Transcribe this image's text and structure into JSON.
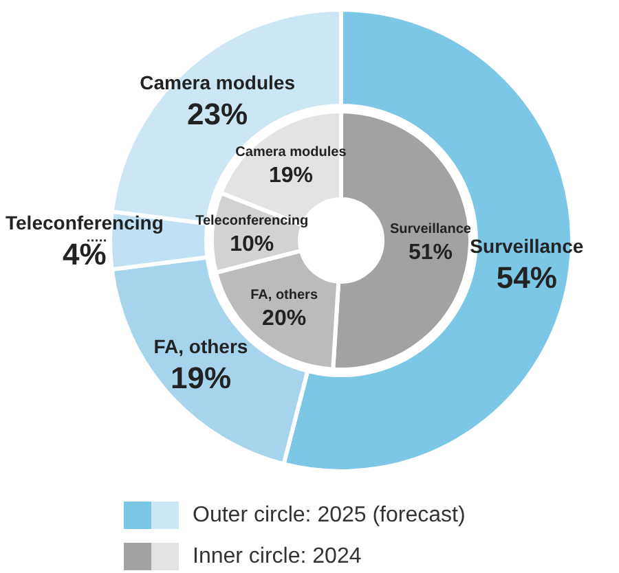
{
  "chart_data": {
    "type": "donut",
    "categories": [
      "Surveillance",
      "FA, others",
      "Teleconferencing",
      "Camera modules"
    ],
    "legend": "bottom left",
    "series": [
      {
        "name": "Outer circle: 2025 (forecast)",
        "values": [
          54,
          19,
          4,
          23
        ],
        "value_labels": [
          "54%",
          "19%",
          "4%",
          "23%"
        ],
        "colors": [
          "#7cc7e5",
          "#a5d4ec",
          "#bfe1f3",
          "#cce6f4"
        ]
      },
      {
        "name": "Inner circle: 2024",
        "values": [
          51,
          20,
          10,
          19
        ],
        "value_labels": [
          "51%",
          "20%",
          "10%",
          "19%"
        ],
        "colors": [
          "#a2a2a5",
          "#bbbbbd",
          "#d2d2d4",
          "#e3e3e4"
        ]
      }
    ]
  }
}
